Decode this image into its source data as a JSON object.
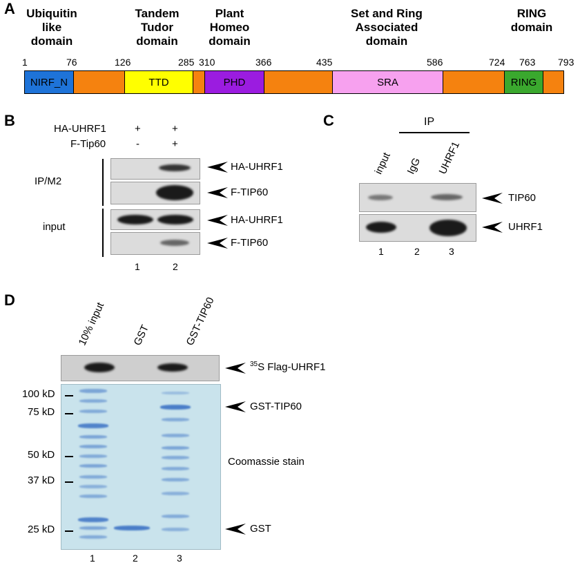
{
  "panel_a": {
    "label": "A",
    "domain_titles": [
      {
        "line1": "Ubiquitin",
        "line2": "like",
        "line3": "domain"
      },
      {
        "line1": "Tandem",
        "line2": "Tudor",
        "line3": "domain"
      },
      {
        "line1": "Plant",
        "line2": "Homeo",
        "line3": "domain"
      },
      {
        "line1": "Set and Ring",
        "line2": "Associated",
        "line3": "domain"
      },
      {
        "line1": "RING",
        "line2": "domain",
        "line3": ""
      }
    ],
    "positions": [
      "1",
      "76",
      "126",
      "285",
      "310",
      "366",
      "435",
      "586",
      "724",
      "763",
      "793"
    ],
    "segments": [
      {
        "label": "NIRF_N",
        "color": "#1e73d8"
      },
      {
        "label": "",
        "color": "#f5820f"
      },
      {
        "label": "TTD",
        "color": "#ffff00"
      },
      {
        "label": "",
        "color": "#f5820f"
      },
      {
        "label": "PHD",
        "color": "#9b1ce0"
      },
      {
        "label": "",
        "color": "#f5820f"
      },
      {
        "label": "SRA",
        "color": "#f7a1ef"
      },
      {
        "label": "",
        "color": "#f5820f"
      },
      {
        "label": "RING",
        "color": "#3aa82e"
      },
      {
        "label": "",
        "color": "#f5820f"
      }
    ]
  },
  "panel_b": {
    "label": "B",
    "row1_label": "HA-UHRF1",
    "row1_values": [
      "+",
      "+"
    ],
    "row2_label": "F-Tip60",
    "row2_values": [
      "-",
      "+"
    ],
    "group1": "IP/M2",
    "group2": "input",
    "bands": [
      "HA-UHRF1",
      "F-TIP60",
      "HA-UHRF1",
      "F-TIP60"
    ],
    "lanes": [
      "1",
      "2"
    ]
  },
  "panel_c": {
    "label": "C",
    "ip_label": "IP",
    "lane_headers": [
      "input",
      "IgG",
      "UHRF1"
    ],
    "bands": [
      "TIP60",
      "UHRF1"
    ],
    "lanes": [
      "1",
      "2",
      "3"
    ]
  },
  "panel_d": {
    "label": "D",
    "lane_headers": [
      "10% input",
      "GST",
      "GST-TIP60"
    ],
    "autorad_sup": "35",
    "autorad_label": "S Flag-UHRF1",
    "markers": [
      "100 kD",
      "75 kD",
      "50 kD",
      "37 kD",
      "25 kD"
    ],
    "gst_tip60_label": "GST-TIP60",
    "stain_label": "Coomassie stain",
    "gst_label": "GST",
    "lanes": [
      "1",
      "2",
      "3"
    ]
  }
}
